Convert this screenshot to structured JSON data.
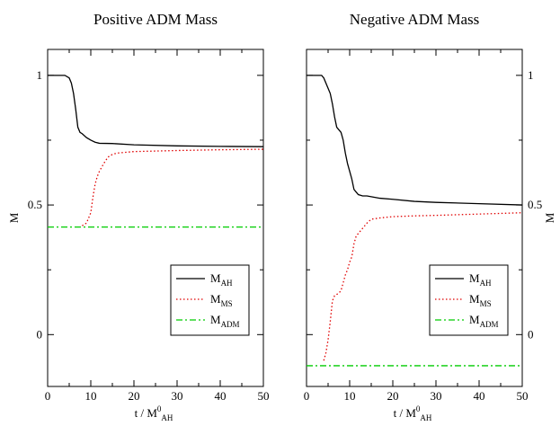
{
  "chart_data": [
    {
      "type": "line",
      "title": "Positive ADM Mass",
      "xlabel": {
        "main": "t / M",
        "sup": "0",
        "sub": "AH"
      },
      "ylabel": "M",
      "xlim": [
        0,
        50
      ],
      "ylim": [
        -0.2,
        1.1
      ],
      "xticks": [
        0,
        10,
        20,
        30,
        40,
        50
      ],
      "yticks": [
        0,
        0.5,
        1
      ],
      "ytick_labels": [
        "0",
        "0.5",
        "1"
      ],
      "ylabel_side": "left",
      "legend": {
        "placement": "lower-right"
      },
      "series": [
        {
          "name": {
            "main": "M",
            "sub": "AH"
          },
          "color": "#000000",
          "dash": "solid",
          "x": [
            0,
            4,
            5,
            5.5,
            6,
            6.5,
            7,
            7.5,
            8,
            9,
            10,
            11,
            12,
            15,
            20,
            30,
            40,
            50
          ],
          "y": [
            1.0,
            1.0,
            0.99,
            0.97,
            0.93,
            0.87,
            0.8,
            0.78,
            0.775,
            0.76,
            0.75,
            0.742,
            0.738,
            0.737,
            0.732,
            0.728,
            0.726,
            0.725
          ]
        },
        {
          "name": {
            "main": "M",
            "sub": "MS"
          },
          "color": "#e00000",
          "dash": "dotted",
          "x": [
            8,
            9,
            10,
            10.5,
            11,
            11.5,
            12,
            13,
            14,
            15,
            16,
            18,
            20,
            30,
            40,
            50
          ],
          "y": [
            0.42,
            0.43,
            0.47,
            0.53,
            0.58,
            0.61,
            0.63,
            0.66,
            0.685,
            0.695,
            0.7,
            0.703,
            0.706,
            0.71,
            0.713,
            0.715
          ]
        },
        {
          "name": {
            "main": "M",
            "sub": "ADM"
          },
          "color": "#00cc00",
          "dash": "dashdot",
          "x": [
            0,
            50
          ],
          "y": [
            0.415,
            0.415
          ]
        }
      ]
    },
    {
      "type": "line",
      "title": "Negative ADM Mass",
      "xlabel": {
        "main": "t / M",
        "sup": "0",
        "sub": "AH"
      },
      "ylabel": "M",
      "xlim": [
        0,
        50
      ],
      "ylim": [
        -0.2,
        1.1
      ],
      "xticks": [
        0,
        10,
        20,
        30,
        40,
        50
      ],
      "yticks": [
        0,
        0.5,
        1
      ],
      "ytick_labels": [
        "0",
        "0.5",
        "1"
      ],
      "ylabel_side": "right",
      "legend": {
        "placement": "lower-right"
      },
      "series": [
        {
          "name": {
            "main": "M",
            "sub": "AH"
          },
          "color": "#000000",
          "dash": "solid",
          "x": [
            0,
            3.5,
            4,
            4.5,
            5,
            5.5,
            6,
            6.5,
            7,
            7.5,
            8,
            8.5,
            9,
            9.5,
            10,
            10.5,
            11,
            11.5,
            12,
            13,
            14,
            15,
            17,
            20,
            25,
            30,
            40,
            50
          ],
          "y": [
            1.0,
            1.0,
            0.99,
            0.97,
            0.95,
            0.93,
            0.89,
            0.84,
            0.8,
            0.79,
            0.78,
            0.75,
            0.7,
            0.66,
            0.63,
            0.6,
            0.56,
            0.55,
            0.54,
            0.535,
            0.535,
            0.532,
            0.526,
            0.522,
            0.514,
            0.51,
            0.505,
            0.5
          ]
        },
        {
          "name": {
            "main": "M",
            "sub": "MS"
          },
          "color": "#e00000",
          "dash": "dotted",
          "x": [
            4,
            4.5,
            5,
            5.5,
            6,
            6.5,
            7,
            7.5,
            8,
            8.5,
            9,
            9.5,
            10,
            10.5,
            11,
            11.5,
            12,
            13,
            14,
            15,
            17,
            20,
            25,
            30,
            40,
            50
          ],
          "y": [
            -0.1,
            -0.07,
            -0.02,
            0.05,
            0.13,
            0.15,
            0.155,
            0.16,
            0.17,
            0.2,
            0.23,
            0.25,
            0.28,
            0.3,
            0.35,
            0.38,
            0.39,
            0.41,
            0.43,
            0.445,
            0.45,
            0.455,
            0.458,
            0.46,
            0.465,
            0.47
          ]
        },
        {
          "name": {
            "main": "M",
            "sub": "ADM"
          },
          "color": "#00cc00",
          "dash": "dashdot",
          "x": [
            0,
            50
          ],
          "y": [
            -0.12,
            -0.12
          ]
        }
      ]
    }
  ]
}
